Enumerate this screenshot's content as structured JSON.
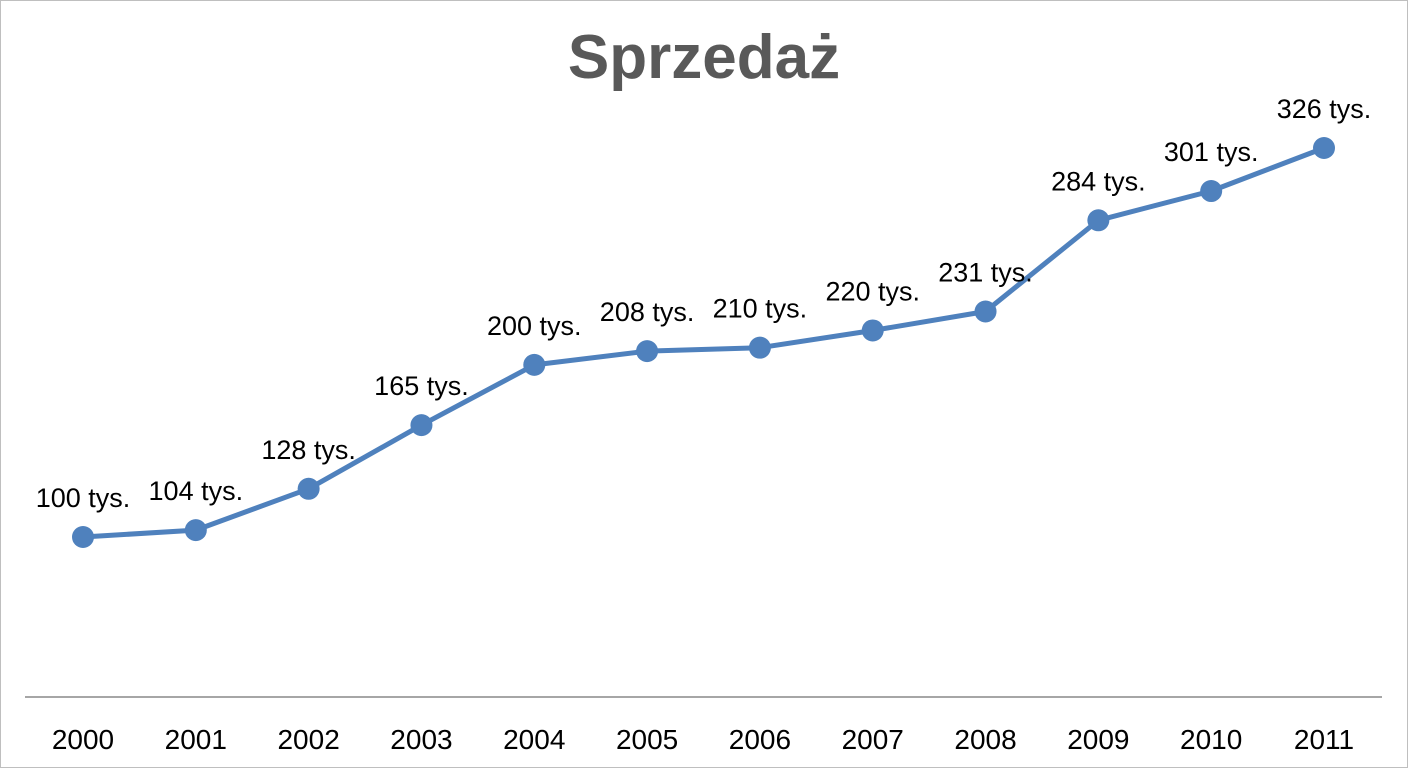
{
  "chart_data": {
    "type": "line",
    "title": "Sprzedaż",
    "categories": [
      "2000",
      "2001",
      "2002",
      "2003",
      "2004",
      "2005",
      "2006",
      "2007",
      "2008",
      "2009",
      "2010",
      "2011"
    ],
    "series": [
      {
        "values": [
          100,
          104,
          128,
          165,
          200,
          208,
          210,
          220,
          231,
          284,
          301,
          326
        ],
        "data_labels": [
          "100 tys.",
          "104 tys.",
          "128 tys.",
          "165 tys.",
          "200 tys.",
          "208 tys.",
          "210 tys.",
          "220 tys.",
          "231 tys.",
          "284 tys.",
          "301 tys.",
          "326 tys."
        ],
        "color": "#4f81bd"
      }
    ],
    "axis_color": "#a6a6a6",
    "title_color": "#595959",
    "grid": false,
    "legend": "none",
    "y_axis_visible": false
  }
}
